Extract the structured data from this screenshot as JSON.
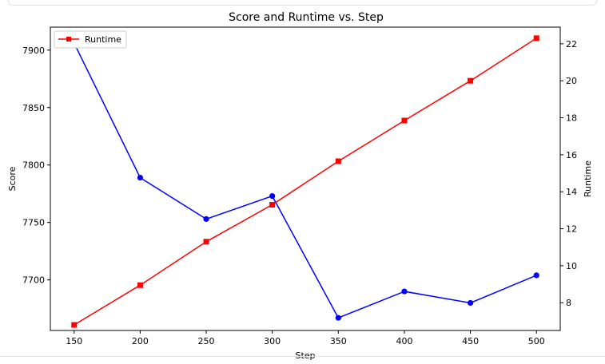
{
  "chart_data": {
    "type": "line",
    "title": "Score and Runtime vs. Step",
    "xlabel": "Step",
    "ylabel_left": "Score",
    "ylabel_right": "Runtime",
    "x": [
      150,
      200,
      250,
      300,
      350,
      400,
      450,
      500
    ],
    "xlim": [
      132,
      518
    ],
    "xticks": [
      150,
      200,
      250,
      300,
      350,
      400,
      450,
      500
    ],
    "ylim_left": [
      7656,
      7920
    ],
    "yticks_left": [
      7700,
      7750,
      7800,
      7850,
      7900
    ],
    "ylim_right": [
      6.5,
      22.9
    ],
    "yticks_right": [
      8,
      10,
      12,
      14,
      16,
      18,
      20,
      22
    ],
    "legend": {
      "position": "upper-left",
      "entries": [
        "Runtime"
      ]
    },
    "series": [
      {
        "axis": "left",
        "color": "#0000ff",
        "marker": "circle",
        "values": [
          7906,
          7789,
          7753,
          7773,
          7667,
          7690,
          7680,
          7704
        ]
      },
      {
        "name": "Runtime",
        "axis": "right",
        "color": "#ff0000",
        "marker": "square",
        "values": [
          6.8,
          8.95,
          11.3,
          13.3,
          15.65,
          17.85,
          20.0,
          22.3
        ]
      }
    ]
  }
}
